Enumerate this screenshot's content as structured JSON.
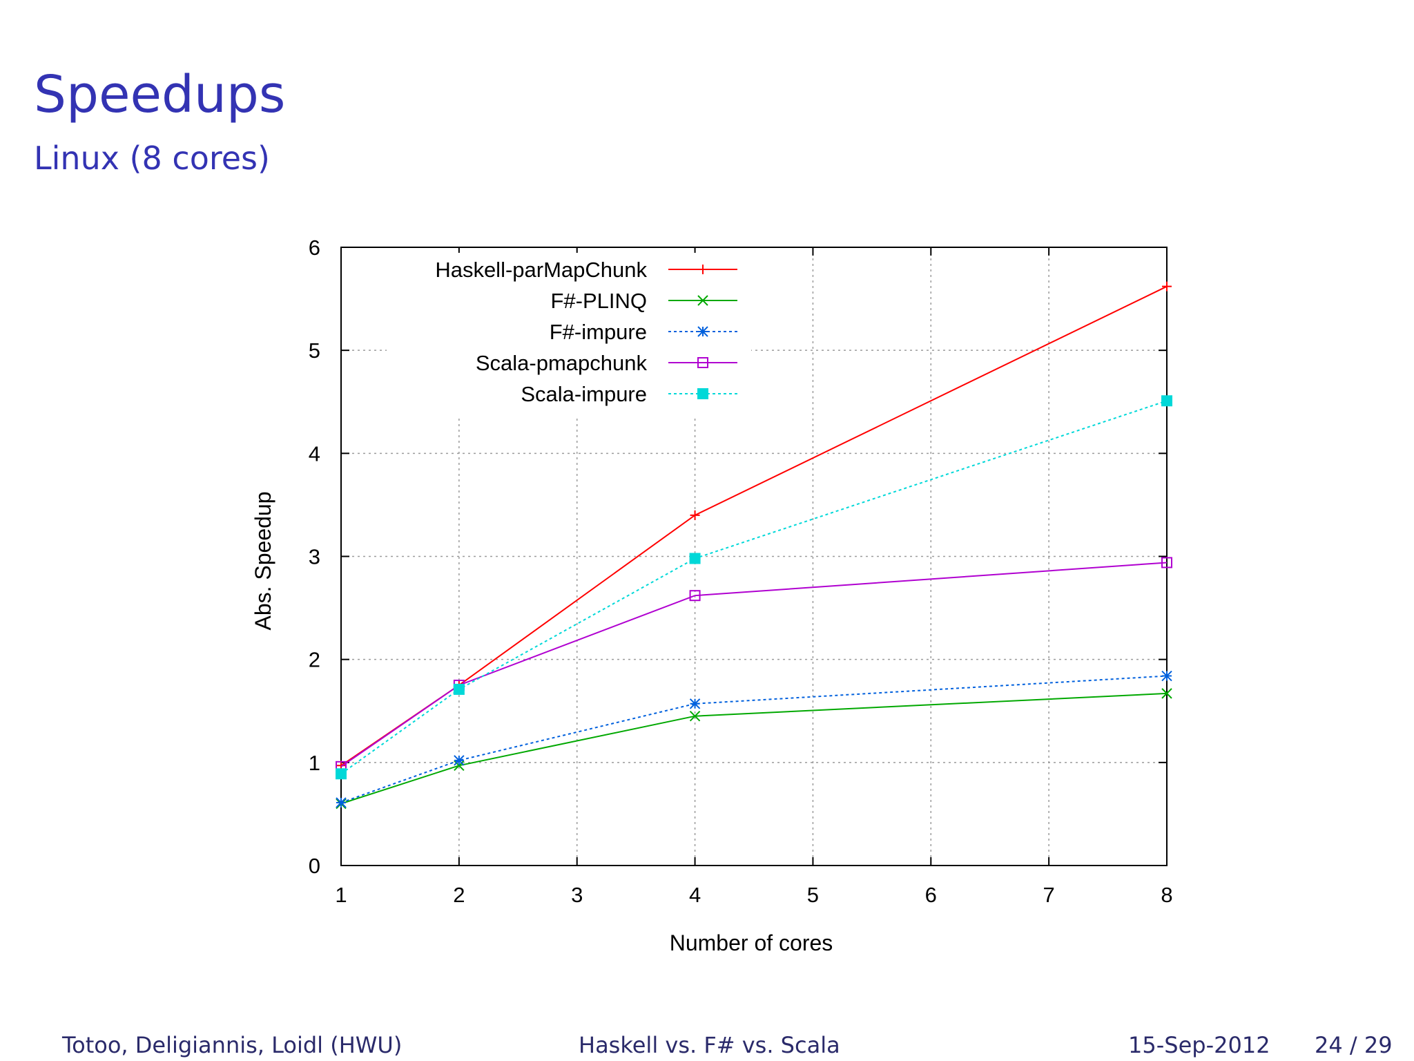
{
  "slide": {
    "title": "Speedups",
    "subtitle": "Linux (8 cores)"
  },
  "footer": {
    "authors": "Totoo, Deligiannis, Loidl  (HWU)",
    "talk_title": "Haskell vs. F# vs. Scala",
    "date": "15-Sep-2012",
    "page": "24 / 29"
  },
  "chart_data": {
    "type": "line",
    "title": "",
    "xlabel": "Number of cores",
    "ylabel": "Abs. Speedup",
    "xlim": [
      1,
      8
    ],
    "ylim": [
      0,
      6
    ],
    "x_ticks": [
      1,
      2,
      3,
      4,
      5,
      6,
      7,
      8
    ],
    "y_ticks": [
      0,
      1,
      2,
      3,
      4,
      5,
      6
    ],
    "grid": true,
    "legend_position": "top-left",
    "series": [
      {
        "name": "Haskell-parMapChunk",
        "color": "#ff0000",
        "dash": "solid",
        "marker": "plus",
        "x": [
          1,
          2,
          4,
          8
        ],
        "y": [
          0.97,
          1.75,
          3.4,
          5.62
        ]
      },
      {
        "name": "F#-PLINQ",
        "color": "#00a800",
        "dash": "solid",
        "marker": "cross",
        "x": [
          1,
          2,
          4,
          8
        ],
        "y": [
          0.6,
          0.97,
          1.45,
          1.67
        ]
      },
      {
        "name": "F#-impure",
        "color": "#0060dd",
        "dash": "dotted",
        "marker": "star",
        "x": [
          1,
          2,
          4,
          8
        ],
        "y": [
          0.61,
          1.02,
          1.57,
          1.84
        ]
      },
      {
        "name": "Scala-pmapchunk",
        "color": "#b000d0",
        "dash": "solid",
        "marker": "open-square",
        "x": [
          1,
          2,
          4,
          8
        ],
        "y": [
          0.96,
          1.75,
          2.62,
          2.94
        ]
      },
      {
        "name": "Scala-impure",
        "color": "#00d8d8",
        "dash": "dotted",
        "marker": "filled-square",
        "x": [
          1,
          2,
          4,
          8
        ],
        "y": [
          0.89,
          1.71,
          2.98,
          4.51
        ]
      }
    ]
  }
}
